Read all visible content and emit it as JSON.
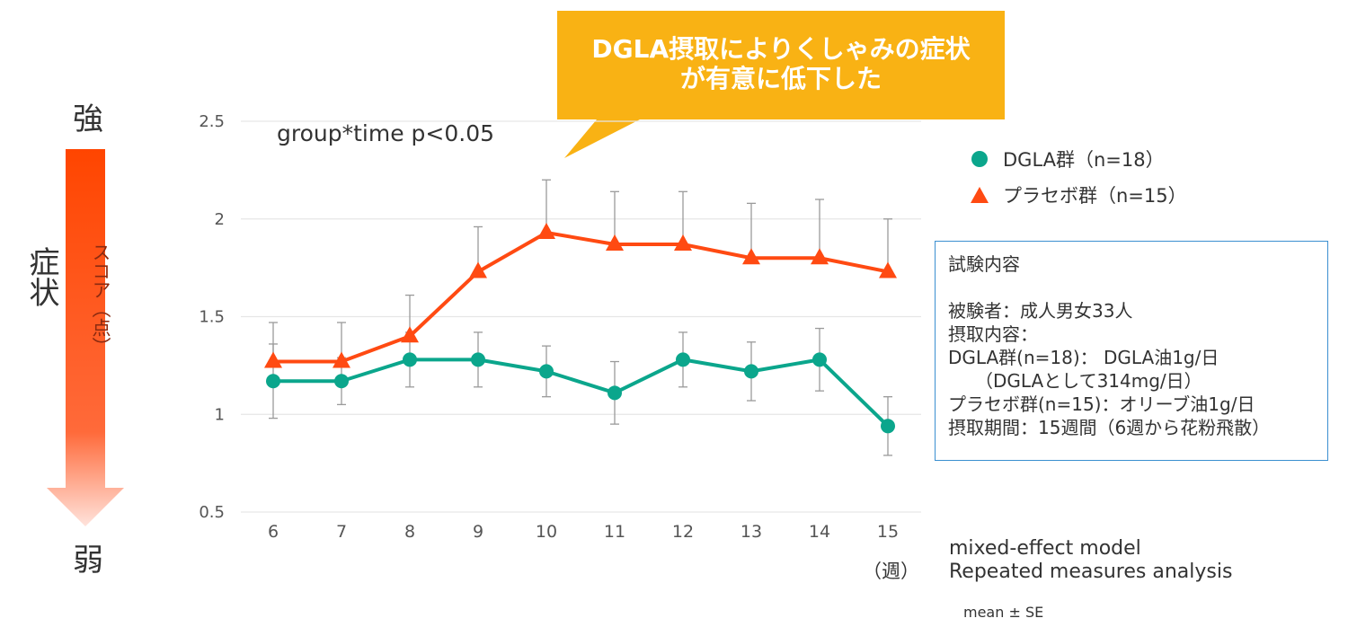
{
  "callout": {
    "line1": "DGLA摂取によりくしゃみの症状",
    "line2": "が有意に低下した",
    "color": "#f9b214"
  },
  "left_scale": {
    "strong": "強",
    "symptom": "症状",
    "score": "スコア（点）",
    "weak": "弱",
    "arrow_color_top": "#ff4500",
    "arrow_color_bottom": "#ffe3dc"
  },
  "stat_text": "group*time p<0.05",
  "legend": {
    "dgla": {
      "label": "DGLA群（n=18）",
      "marker": "circle",
      "color": "#0ba68c"
    },
    "placebo": {
      "label": "プラセボ群（n=15）",
      "marker": "triangle",
      "color": "#ff4a12"
    }
  },
  "info_box": {
    "lines": [
      "試験内容",
      "",
      "被験者：成人男女33人",
      "摂取内容：",
      "DGLA群(n=18)： DGLA油1g/日",
      "　　（DGLAとして314mg/日）",
      "プラセボ群(n=15)：オリーブ油1g/日",
      "摂取期間：15週間（6週から花粉飛散）"
    ],
    "border_color": "#3b8fd0"
  },
  "notes": {
    "model": "mixed-effect model",
    "analysis": "Repeated measures analysis",
    "mean_se": "mean ± SE"
  },
  "chart_data": {
    "type": "line",
    "x": [
      6,
      7,
      8,
      9,
      10,
      11,
      12,
      13,
      14,
      15
    ],
    "x_unit": "（週）",
    "ylim": [
      0.5,
      2.5
    ],
    "yticks": [
      0.5,
      1,
      1.5,
      2,
      2.5
    ],
    "grid": true,
    "legend_position": "right",
    "series": [
      {
        "name": "DGLA群（n=18）",
        "color": "#0ba68c",
        "marker": "circle",
        "values": [
          1.17,
          1.17,
          1.28,
          1.28,
          1.22,
          1.11,
          1.28,
          1.22,
          1.28,
          0.94
        ],
        "se": [
          0.19,
          0.12,
          0.14,
          0.14,
          0.13,
          0.16,
          0.14,
          0.15,
          0.16,
          0.15
        ]
      },
      {
        "name": "プラセボ群（n=15）",
        "color": "#ff4a12",
        "marker": "triangle",
        "values": [
          1.27,
          1.27,
          1.4,
          1.73,
          1.93,
          1.87,
          1.87,
          1.8,
          1.8,
          1.73
        ],
        "se": [
          0.2,
          0.2,
          0.21,
          0.23,
          0.27,
          0.27,
          0.27,
          0.28,
          0.3,
          0.27
        ]
      }
    ]
  }
}
